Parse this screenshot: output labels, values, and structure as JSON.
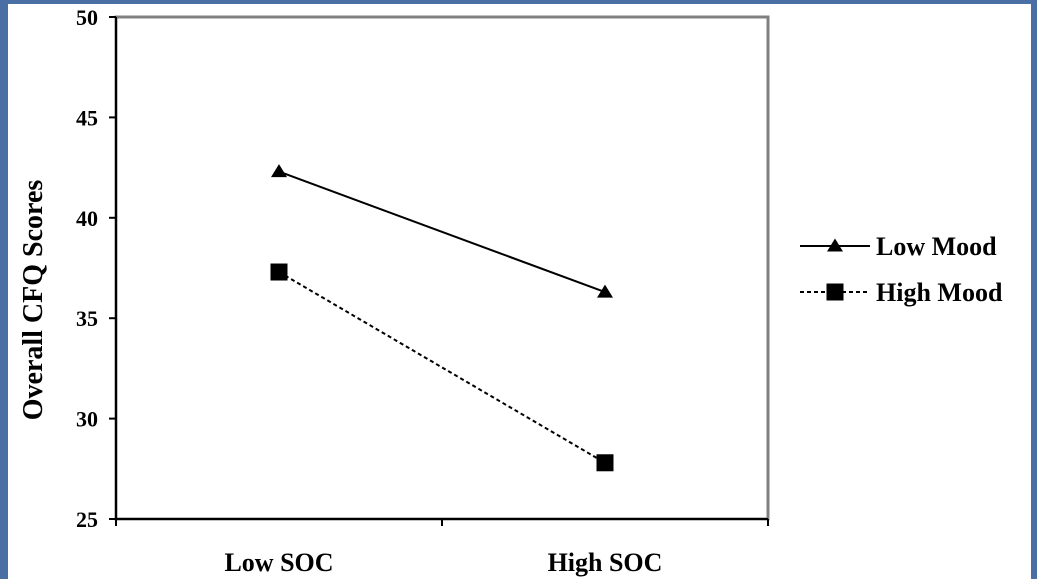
{
  "chart_data": {
    "type": "line",
    "title": "",
    "xlabel": "",
    "ylabel": "Overall CFQ Scores",
    "categories": [
      "Low SOC",
      "High SOC"
    ],
    "ylim": [
      25,
      50
    ],
    "yticks": [
      25,
      30,
      35,
      40,
      45,
      50
    ],
    "grid": false,
    "legend": "right",
    "series": [
      {
        "name": "Low Mood",
        "values": [
          42.3,
          36.3
        ],
        "marker": "triangle",
        "line": "solid",
        "color": "#000000"
      },
      {
        "name": "High Mood",
        "values": [
          37.3,
          27.8
        ],
        "marker": "square",
        "line": "dashed",
        "color": "#000000"
      }
    ]
  },
  "colors": {
    "frame": "#4a6fa5",
    "plot_border": "#808080"
  }
}
